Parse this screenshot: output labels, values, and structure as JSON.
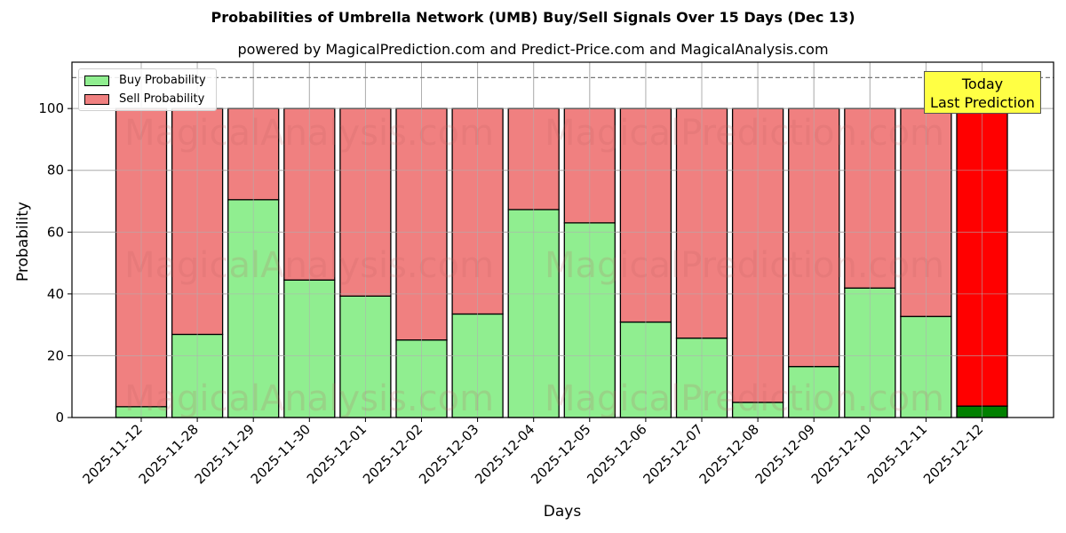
{
  "title": "Probabilities of Umbrella Network (UMB) Buy/Sell Signals Over 15 Days (Dec 13)",
  "subtitle": "powered by MagicalPrediction.com and Predict-Price.com and MagicalAnalysis.com",
  "legend": {
    "buy_label": "Buy Probability",
    "sell_label": "Sell Probability"
  },
  "annotation": {
    "line1": "Today",
    "line2": "Last Prediction"
  },
  "watermarks": [
    "MagicalAnalysis.com",
    "MagicalPrediction.com"
  ],
  "colors": {
    "buy": "#90ee90",
    "sell": "#f08080",
    "buy_today": "#008000",
    "sell_today": "#ff0000",
    "annotation_bg": "#ffff44"
  },
  "chart_data": {
    "type": "bar",
    "stacked": true,
    "title": "Probabilities of Umbrella Network (UMB) Buy/Sell Signals Over 15 Days (Dec 13)",
    "subtitle": "powered by MagicalPrediction.com and Predict-Price.com and MagicalAnalysis.com",
    "xlabel": "Days",
    "ylabel": "Probability",
    "ylim": [
      0,
      115
    ],
    "yticks": [
      0,
      20,
      40,
      60,
      80,
      100
    ],
    "grid": true,
    "legend_position": "upper left",
    "reference_line": {
      "y": 110,
      "style": "dashed"
    },
    "categories": [
      "2025-11-12",
      "2025-11-28",
      "2025-11-29",
      "2025-11-30",
      "2025-12-01",
      "2025-12-02",
      "2025-12-03",
      "2025-12-04",
      "2025-12-05",
      "2025-12-06",
      "2025-12-07",
      "2025-12-08",
      "2025-12-09",
      "2025-12-10",
      "2025-12-11",
      "2025-12-12"
    ],
    "series": [
      {
        "name": "Buy Probability",
        "values": [
          3.5,
          26.9,
          70.5,
          44.5,
          39.3,
          25.1,
          33.5,
          67.3,
          63.0,
          30.9,
          25.7,
          4.9,
          16.5,
          41.9,
          32.7,
          3.7
        ]
      },
      {
        "name": "Sell Probability",
        "values": [
          96.5,
          73.1,
          29.5,
          55.5,
          60.7,
          74.9,
          66.5,
          32.7,
          37.0,
          69.1,
          74.3,
          95.1,
          83.5,
          58.1,
          67.3,
          96.3
        ]
      }
    ],
    "annotations": [
      {
        "text": "Today\nLast Prediction",
        "category": "2025-12-12"
      }
    ]
  }
}
